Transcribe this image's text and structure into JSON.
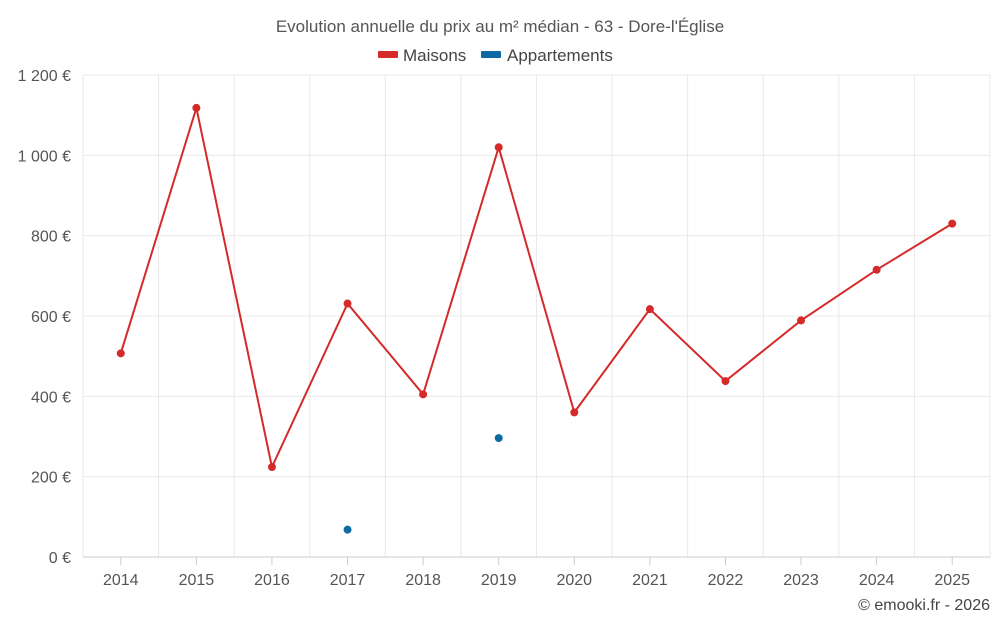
{
  "chart_data": {
    "type": "line",
    "title": "Evolution annuelle du prix au m² médian - 63 - Dore-l'Église",
    "categories": [
      "2014",
      "2015",
      "2016",
      "2017",
      "2018",
      "2019",
      "2020",
      "2021",
      "2022",
      "2023",
      "2024",
      "2025"
    ],
    "series": [
      {
        "name": "Maisons",
        "color": "#d42a2a",
        "values": [
          507,
          1118,
          224,
          631,
          405,
          1020,
          360,
          617,
          438,
          589,
          715,
          830
        ]
      },
      {
        "name": "Appartements",
        "color": "#0e6aa3",
        "values": [
          null,
          null,
          null,
          68,
          null,
          296,
          null,
          null,
          null,
          null,
          null,
          null
        ]
      }
    ],
    "ylim": [
      0,
      1200
    ],
    "yticks": [
      0,
      200,
      400,
      600,
      800,
      1000,
      1200
    ],
    "ytick_labels": [
      "0 €",
      "200 €",
      "400 €",
      "600 €",
      "800 €",
      "1 000 €",
      "1 200 €"
    ],
    "grid": true,
    "legend_position": "top-center",
    "credit": "© emooki.fr - 2026"
  }
}
